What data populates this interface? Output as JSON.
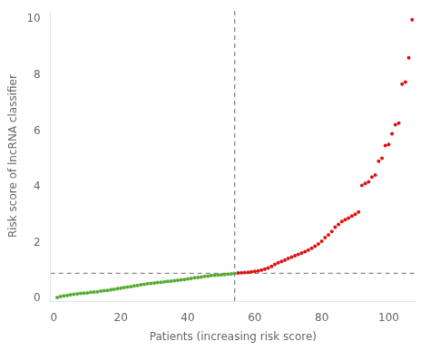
{
  "chart_data": {
    "type": "scatter",
    "xlabel": "Patients (increasing risk score)",
    "ylabel": "Risk score of lncRNA classifier",
    "xlim": [
      -1,
      108
    ],
    "ylim": [
      -0.1,
      10.3
    ],
    "xticks": [
      0,
      20,
      40,
      60,
      80,
      100
    ],
    "yticks": [
      0,
      2,
      4,
      6,
      8,
      10
    ],
    "grid": false,
    "series": [
      {
        "color": "#55aa33",
        "x": [
          1,
          2,
          3,
          4,
          5,
          6,
          7,
          8,
          9,
          10,
          11,
          12,
          13,
          14,
          15,
          16,
          17,
          18,
          19,
          20,
          21,
          22,
          23,
          24,
          25,
          26,
          27,
          28,
          29,
          30,
          31,
          32,
          33,
          34,
          35,
          36,
          37,
          38,
          39,
          40,
          41,
          42,
          43,
          44,
          45,
          46,
          47,
          48,
          49,
          50,
          51,
          52,
          53,
          54
        ],
        "values": [
          0.04,
          0.07,
          0.09,
          0.11,
          0.13,
          0.15,
          0.17,
          0.18,
          0.19,
          0.2,
          0.22,
          0.23,
          0.24,
          0.26,
          0.28,
          0.29,
          0.31,
          0.33,
          0.35,
          0.37,
          0.39,
          0.41,
          0.43,
          0.45,
          0.47,
          0.49,
          0.51,
          0.53,
          0.54,
          0.56,
          0.57,
          0.58,
          0.6,
          0.61,
          0.62,
          0.64,
          0.65,
          0.67,
          0.68,
          0.7,
          0.72,
          0.74,
          0.75,
          0.77,
          0.79,
          0.8,
          0.82,
          0.83,
          0.84,
          0.85,
          0.86,
          0.87,
          0.88,
          0.9
        ]
      },
      {
        "color": "#dd1111",
        "x": [
          55,
          56,
          57,
          58,
          59,
          60,
          61,
          62,
          63,
          64,
          65,
          66,
          67,
          68,
          69,
          70,
          71,
          72,
          73,
          74,
          75,
          76,
          77,
          78,
          79,
          80,
          81,
          82,
          83,
          84,
          85,
          86,
          87,
          88,
          89,
          90,
          91,
          92,
          93,
          94,
          95,
          96,
          97,
          98,
          99,
          100,
          101,
          102,
          103,
          104,
          105,
          106,
          107
        ],
        "values": [
          0.91,
          0.92,
          0.93,
          0.94,
          0.95,
          0.97,
          0.99,
          1.02,
          1.05,
          1.09,
          1.15,
          1.22,
          1.28,
          1.33,
          1.38,
          1.43,
          1.48,
          1.53,
          1.58,
          1.63,
          1.68,
          1.73,
          1.8,
          1.87,
          1.95,
          2.05,
          2.18,
          2.28,
          2.4,
          2.55,
          2.65,
          2.76,
          2.82,
          2.88,
          2.95,
          3.02,
          3.1,
          4.05,
          4.12,
          4.18,
          4.35,
          4.42,
          4.92,
          5.02,
          5.48,
          5.52,
          5.9,
          6.22,
          6.28,
          7.68,
          7.75,
          8.62,
          9.98
        ]
      }
    ],
    "vlines": [
      {
        "x": 54,
        "color": "#888888",
        "line_style": "dashed"
      }
    ],
    "hlines": [
      {
        "y": 0.9,
        "color": "#888888",
        "line_style": "dashed"
      }
    ]
  }
}
